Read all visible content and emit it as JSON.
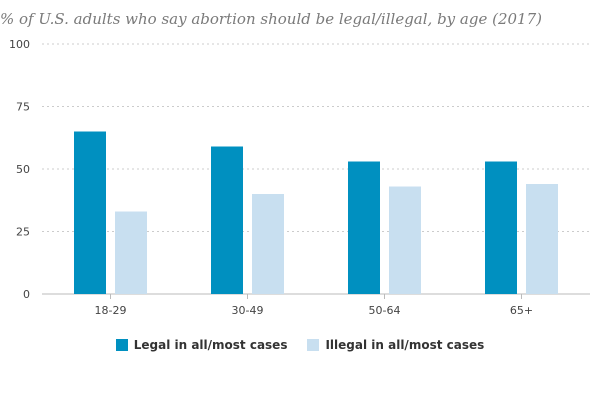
{
  "chart_data": {
    "type": "bar",
    "title": "% of U.S. adults who say abortion should be legal/illegal, by age (2017)",
    "categories": [
      "18-29",
      "30-49",
      "50-64",
      "65+"
    ],
    "series": [
      {
        "name": "Legal in all/most cases",
        "values": [
          65,
          59,
          53,
          53
        ],
        "color": "#0090c0"
      },
      {
        "name": "Illegal in all/most cases",
        "values": [
          33,
          40,
          43,
          44
        ],
        "color": "#c8dff0"
      }
    ],
    "y_ticks": [
      "0",
      "25",
      "50",
      "75",
      "100"
    ],
    "ylim": [
      0,
      100
    ],
    "grid": true,
    "legend_position": "bottom"
  }
}
